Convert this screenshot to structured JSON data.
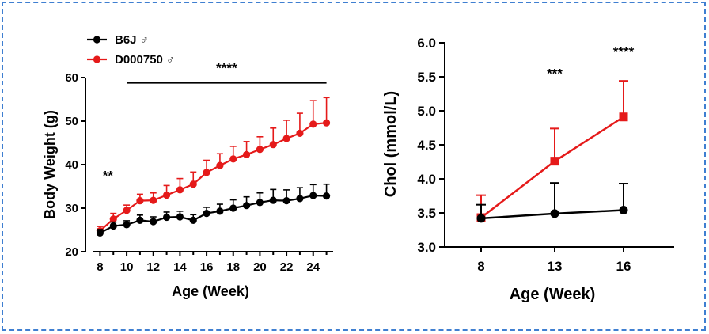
{
  "colors": {
    "border": "#3f7fd1",
    "b6j": "#000000",
    "d000750": "#e51a1a"
  },
  "chart_data": [
    {
      "type": "line",
      "xlabel": "Age (Week)",
      "ylabel": "Body Weight (g)",
      "ylim": [
        20,
        60
      ],
      "xlim": [
        7.5,
        25.5
      ],
      "yticks": [
        "20",
        "30",
        "40",
        "50",
        "60"
      ],
      "xticks": [
        "8",
        "10",
        "12",
        "14",
        "16",
        "18",
        "20",
        "22",
        "24"
      ],
      "legend": [
        {
          "name": "B6J ♂",
          "color": "#000000",
          "marker": "circle"
        },
        {
          "name": "D000750 ♂",
          "color": "#e51a1a",
          "marker": "circle"
        }
      ],
      "x": [
        8,
        9,
        10,
        11,
        12,
        13,
        14,
        15,
        16,
        17,
        18,
        19,
        20,
        21,
        22,
        23,
        24,
        25
      ],
      "series": [
        {
          "name": "D000750 ♂",
          "color": "#e51a1a",
          "values": [
            24.8,
            27.5,
            29.5,
            31.7,
            31.8,
            33.0,
            34.2,
            35.5,
            38.2,
            39.8,
            41.3,
            42.3,
            43.5,
            44.6,
            46.0,
            47.2,
            49.3,
            49.6
          ],
          "errors": [
            1.0,
            1.3,
            1.2,
            1.5,
            1.7,
            2.2,
            2.6,
            2.8,
            2.8,
            2.7,
            2.9,
            3.0,
            2.9,
            3.8,
            4.2,
            4.6,
            5.4,
            5.8
          ]
        },
        {
          "name": "B6J ♂",
          "color": "#000000",
          "values": [
            24.3,
            25.9,
            26.2,
            27.2,
            26.9,
            27.9,
            28.0,
            27.2,
            28.8,
            29.3,
            30.0,
            30.6,
            31.3,
            31.8,
            31.7,
            32.2,
            32.9,
            32.8
          ],
          "errors": [
            0.8,
            0.9,
            0.9,
            1.2,
            1.1,
            1.2,
            1.3,
            1.3,
            1.4,
            1.6,
            1.9,
            2.0,
            2.2,
            2.5,
            2.5,
            2.5,
            2.5,
            2.7
          ]
        }
      ],
      "annotations": [
        {
          "text": "**",
          "x": 8.2,
          "y": 36.5
        },
        {
          "text": "****",
          "x": 17.5,
          "y": 61.2,
          "bracket_from": 10,
          "bracket_to": 25,
          "bracket_y": 58.8
        }
      ]
    },
    {
      "type": "line",
      "xlabel": "Age (Week)",
      "ylabel": "Chol (mmol/L)",
      "ylim": [
        3.0,
        6.0
      ],
      "yticks": [
        "3.0",
        "3.5",
        "4.0",
        "4.5",
        "5.0",
        "5.5",
        "6.0"
      ],
      "categories": [
        "8",
        "13",
        "16"
      ],
      "series": [
        {
          "name": "D000750 ♂",
          "color": "#e51a1a",
          "marker": "square",
          "values": [
            3.43,
            4.26,
            4.91
          ],
          "errors": [
            0.33,
            0.48,
            0.53
          ]
        },
        {
          "name": "B6J ♂",
          "color": "#000000",
          "marker": "circle",
          "values": [
            3.42,
            3.49,
            3.54
          ],
          "errors": [
            0.2,
            0.45,
            0.39
          ]
        }
      ],
      "annotations": [
        {
          "text": "***",
          "category": "13",
          "y": 5.48
        },
        {
          "text": "****",
          "category": "16",
          "y": 5.8
        }
      ]
    }
  ]
}
